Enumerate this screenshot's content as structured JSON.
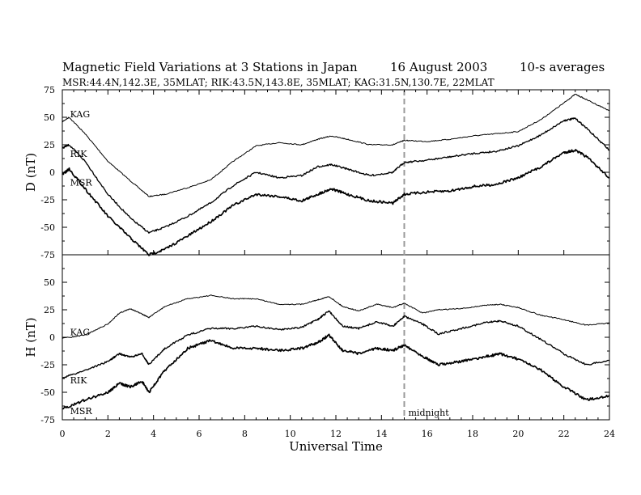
{
  "header": {
    "title": "Magnetic Field Variations at 3 Stations in Japan",
    "date": "16  August  2003",
    "averaging": "10-s averages",
    "stations_line": "MSR:44.4N,142.3E, 35MLAT;  RIK:43.5N,143.8E, 35MLAT;  KAG:31.5N,130.7E, 22MLAT"
  },
  "chart_data": {
    "type": "line",
    "xlabel": "Universal Time",
    "xlim": [
      0,
      24
    ],
    "xticks": [
      0,
      2,
      4,
      6,
      8,
      10,
      12,
      14,
      16,
      18,
      20,
      22,
      24
    ],
    "midnight_ut": 15,
    "midnight_label": "midnight",
    "grid": false,
    "panels": [
      {
        "id": "D",
        "ylabel": "D (nT)",
        "ylim": [
          -75,
          75
        ],
        "yticks": [
          75,
          50,
          25,
          0,
          -25,
          -50,
          -75
        ],
        "series": [
          {
            "name": "KAG",
            "label_x": 0.2,
            "label_y": 50,
            "x": [
              0,
              0.3,
              1,
              2,
              3,
              3.8,
              4.5,
              5.5,
              6.5,
              7.5,
              8.5,
              9.5,
              10.5,
              11.2,
              11.8,
              12.5,
              13.5,
              14.5,
              15,
              16,
              17,
              18,
              19,
              20,
              21,
              22,
              22.5,
              23,
              24
            ],
            "y": [
              46,
              50,
              35,
              10,
              -8,
              -22,
              -20,
              -14,
              -7,
              10,
              24,
              27,
              25,
              30,
              33,
              30,
              25,
              25,
              29,
              28,
              30,
              33,
              35,
              37,
              48,
              63,
              71,
              66,
              56
            ]
          },
          {
            "name": "RIK",
            "label_x": 0.2,
            "label_y": 14,
            "x": [
              0,
              0.3,
              1,
              2,
              3,
              3.8,
              4.5,
              5.5,
              6.5,
              7.5,
              8.5,
              9.5,
              10.5,
              11.2,
              11.8,
              12.5,
              13.5,
              14.5,
              15,
              16,
              17,
              18,
              19,
              20,
              21,
              22,
              22.5,
              23,
              24
            ],
            "y": [
              22,
              25,
              10,
              -20,
              -42,
              -55,
              -50,
              -40,
              -28,
              -12,
              0,
              -5,
              -3,
              5,
              7,
              3,
              -3,
              0,
              9,
              11,
              14,
              17,
              19,
              24,
              34,
              47,
              49,
              40,
              20
            ]
          },
          {
            "name": "MSR",
            "label_x": 0.2,
            "label_y": -12,
            "x": [
              0,
              0.3,
              1,
              2,
              3,
              3.8,
              4.5,
              5.5,
              6.5,
              7.5,
              8.5,
              9.5,
              10.5,
              11.2,
              11.8,
              12.5,
              13.5,
              14.5,
              15,
              16,
              17,
              18,
              19,
              20,
              21,
              22,
              22.5,
              23,
              24
            ],
            "y": [
              -2,
              3,
              -15,
              -40,
              -60,
              -75,
              -70,
              -58,
              -45,
              -30,
              -20,
              -22,
              -26,
              -20,
              -15,
              -20,
              -26,
              -28,
              -20,
              -18,
              -17,
              -13,
              -11,
              -5,
              5,
              18,
              20,
              14,
              -5
            ]
          }
        ]
      },
      {
        "id": "H",
        "ylabel": "H (nT)",
        "ylim": [
          -75,
          75
        ],
        "yticks": [
          50,
          25,
          0,
          -25,
          -50,
          -75
        ],
        "series": [
          {
            "name": "KAG",
            "label_x": 0.2,
            "label_y": 2,
            "x": [
              0,
              1,
              2,
              2.5,
              3,
              3.5,
              3.8,
              4.5,
              5.5,
              6.5,
              7.5,
              8.5,
              9.5,
              10.5,
              11.2,
              11.7,
              12.3,
              13,
              13.8,
              14.5,
              15,
              15.8,
              16.5,
              17.5,
              18.5,
              19.2,
              20,
              21,
              22,
              23,
              24
            ],
            "y": [
              -1,
              2,
              12,
              22,
              26,
              21,
              18,
              28,
              35,
              38,
              35,
              35,
              30,
              30,
              34,
              37,
              28,
              24,
              30,
              27,
              31,
              22,
              25,
              26,
              29,
              30,
              27,
              20,
              16,
              11,
              13
            ]
          },
          {
            "name": "RIK",
            "label_x": 0.2,
            "label_y": -42,
            "x": [
              0,
              1,
              2,
              2.5,
              3,
              3.5,
              3.8,
              4.5,
              5.5,
              6.5,
              7.5,
              8.5,
              9.5,
              10.5,
              11.2,
              11.7,
              12.3,
              13,
              13.8,
              14.5,
              15,
              15.8,
              16.5,
              17.5,
              18.5,
              19.2,
              20,
              21,
              22,
              23,
              24
            ],
            "y": [
              -37,
              -30,
              -22,
              -15,
              -18,
              -15,
              -25,
              -10,
              2,
              8,
              8,
              10,
              7,
              9,
              16,
              24,
              10,
              8,
              14,
              10,
              19,
              12,
              3,
              8,
              13,
              15,
              10,
              -2,
              -15,
              -25,
              -21
            ]
          },
          {
            "name": "MSR",
            "label_x": 0.2,
            "label_y": -70,
            "x": [
              0,
              1,
              2,
              2.5,
              3,
              3.5,
              3.8,
              4.5,
              5.5,
              6.5,
              7.5,
              8.5,
              9.5,
              10.5,
              11.2,
              11.7,
              12.3,
              13,
              13.8,
              14.5,
              15,
              15.8,
              16.5,
              17.5,
              18.5,
              19.2,
              20,
              21,
              22,
              23,
              24
            ],
            "y": [
              -65,
              -57,
              -50,
              -42,
              -45,
              -40,
              -50,
              -30,
              -10,
              -3,
              -10,
              -10,
              -12,
              -10,
              -5,
              2,
              -12,
              -15,
              -10,
              -12,
              -7,
              -17,
              -25,
              -22,
              -18,
              -15,
              -20,
              -30,
              -45,
              -57,
              -53
            ]
          }
        ]
      }
    ]
  }
}
